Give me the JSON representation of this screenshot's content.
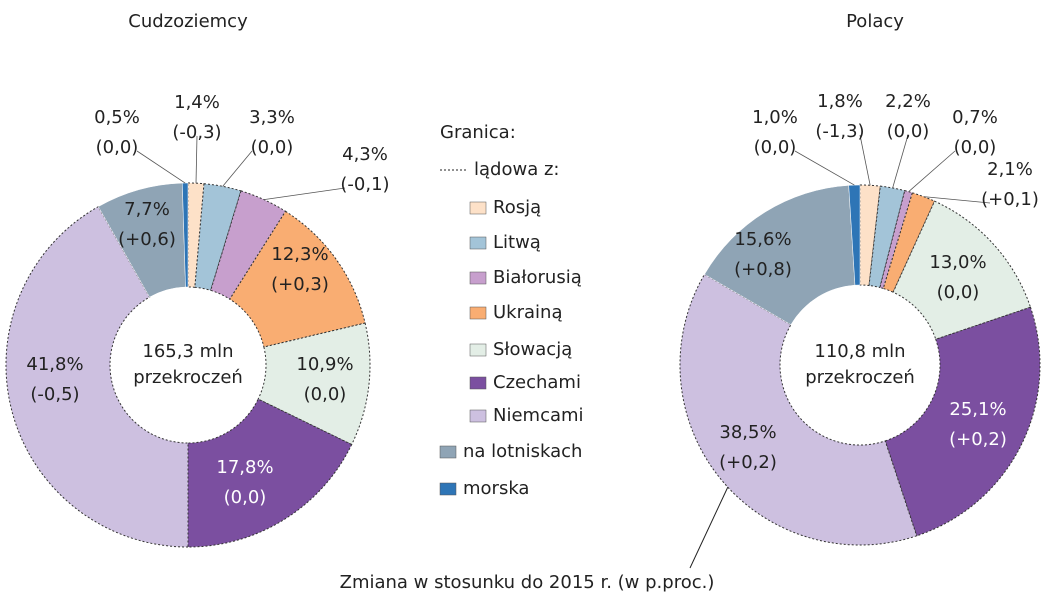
{
  "chart_data": [
    {
      "type": "pie",
      "title": "Cudzoziemcy",
      "center_label": [
        "165,3 mln",
        "przekroczeń"
      ],
      "categories": [
        "Rosją",
        "Litwą",
        "Białorusią",
        "Ukrainą",
        "Słowacją",
        "Czechami",
        "Niemcami",
        "na lotniskach",
        "morska"
      ],
      "values": [
        1.4,
        3.3,
        4.3,
        12.3,
        10.9,
        17.8,
        41.8,
        7.7,
        0.5
      ],
      "value_labels": [
        "1,4%",
        "3,3%",
        "4,3%",
        "12,3%",
        "10,9%",
        "17,8%",
        "41,8%",
        "7,7%",
        "0,5%"
      ],
      "changes": [
        {
          "value": -0.3,
          "label": "(-0,3)"
        },
        {
          "value": 0,
          "label": "(0,0)"
        },
        {
          "value": -0.1,
          "label": "(-0,1)"
        },
        {
          "value": 0.3,
          "label": "(+0,3)"
        },
        {
          "value": 0,
          "label": "(0,0)"
        },
        {
          "value": 0,
          "label": "(0,0)"
        },
        {
          "value": -0.5,
          "label": "(-0,5)"
        },
        {
          "value": 0.6,
          "label": "(+0,6)"
        },
        {
          "value": 0,
          "label": "(0,0)"
        }
      ],
      "colors": [
        "#fde1c8",
        "#a3c4d8",
        "#c79fcd",
        "#f9ad72",
        "#e3eee6",
        "#7b4fa0",
        "#cdc0e0",
        "#8fa4b5",
        "#2e75b6"
      ]
    },
    {
      "type": "pie",
      "title": "Polacy",
      "center_label": [
        "110,8 mln",
        "przekroczeń"
      ],
      "categories": [
        "Rosją",
        "Litwą",
        "Białorusią",
        "Ukrainą",
        "Słowacją",
        "Czechami",
        "Niemcami",
        "na lotniskach",
        "morska"
      ],
      "values": [
        1.8,
        2.2,
        0.7,
        2.1,
        13.0,
        25.1,
        38.5,
        15.6,
        1.0
      ],
      "value_labels": [
        "1,8%",
        "2,2%",
        "0,7%",
        "2,1%",
        "13,0%",
        "25,1%",
        "38,5%",
        "15,6%",
        "1,0%"
      ],
      "changes": [
        {
          "value": -1.3,
          "label": "(-1,3)"
        },
        {
          "value": 0,
          "label": "(0,0)"
        },
        {
          "value": 0,
          "label": "(0,0)"
        },
        {
          "value": 0.1,
          "label": "(+0,1)"
        },
        {
          "value": 0,
          "label": "(0,0)"
        },
        {
          "value": 0.2,
          "label": "(+0,2)"
        },
        {
          "value": 0.2,
          "label": "(+0,2)"
        },
        {
          "value": 0.8,
          "label": "(+0,8)"
        },
        {
          "value": 0,
          "label": "(0,0)"
        }
      ],
      "colors": [
        "#fde1c8",
        "#a3c4d8",
        "#c79fcd",
        "#f9ad72",
        "#e3eee6",
        "#7b4fa0",
        "#cdc0e0",
        "#8fa4b5",
        "#2e75b6"
      ]
    }
  ],
  "legend_title": "Granica:",
  "legend_group": "lądowa z:",
  "note": "Zmiana w stosunku do 2015 r. (w p.proc.)"
}
